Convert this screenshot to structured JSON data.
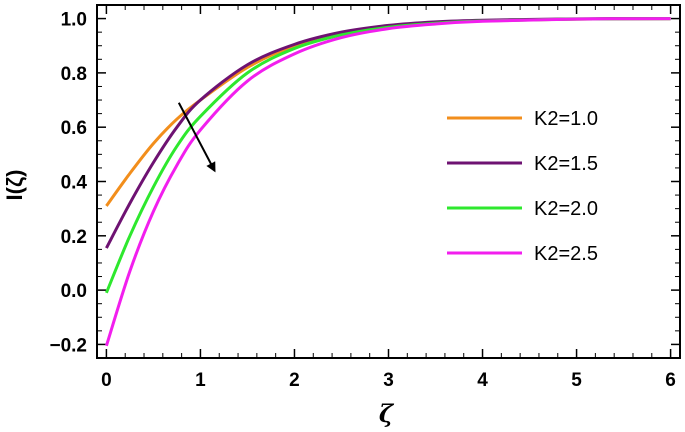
{
  "chart_data": {
    "type": "line",
    "xlabel": "ζ",
    "ylabel": "I(ζ)",
    "xlim": [
      -0.1,
      6.1
    ],
    "ylim": [
      -0.25,
      1.05
    ],
    "xticks": [
      0,
      1,
      2,
      3,
      4,
      5,
      6
    ],
    "xtick_labels": [
      "0",
      "1",
      "2",
      "3",
      "4",
      "5",
      "6"
    ],
    "yticks": [
      -0.2,
      0.0,
      0.2,
      0.4,
      0.6,
      0.8,
      1.0
    ],
    "ytick_labels": [
      "−0.2",
      "0.0",
      "0.2",
      "0.4",
      "0.6",
      "0.8",
      "1.0"
    ],
    "grid": false,
    "legend_position": "right",
    "arrow": {
      "from": [
        0.77,
        0.69
      ],
      "to": [
        1.15,
        0.44
      ]
    },
    "x": [
      0,
      0.25,
      0.5,
      0.75,
      1,
      1.5,
      2,
      2.5,
      3,
      3.5,
      4,
      5,
      6
    ],
    "series": [
      {
        "name": "K2=1.0",
        "color": "#F28E1C",
        "values": [
          0.31,
          0.43,
          0.54,
          0.63,
          0.7,
          0.82,
          0.9,
          0.945,
          0.972,
          0.985,
          0.992,
          0.998,
          1.0
        ]
      },
      {
        "name": "K2=1.5",
        "color": "#6E1272",
        "values": [
          0.155,
          0.32,
          0.47,
          0.6,
          0.7,
          0.83,
          0.905,
          0.95,
          0.975,
          0.988,
          0.994,
          0.999,
          1.0
        ]
      },
      {
        "name": "K2=2.0",
        "color": "#2EE82E",
        "values": [
          -0.01,
          0.2,
          0.38,
          0.53,
          0.64,
          0.8,
          0.89,
          0.94,
          0.968,
          0.983,
          0.991,
          0.998,
          1.0
        ]
      },
      {
        "name": "K2=2.5",
        "color": "#F21EEE",
        "values": [
          -0.205,
          0.07,
          0.29,
          0.46,
          0.59,
          0.77,
          0.87,
          0.93,
          0.963,
          0.98,
          0.99,
          0.998,
          1.0
        ]
      }
    ]
  }
}
